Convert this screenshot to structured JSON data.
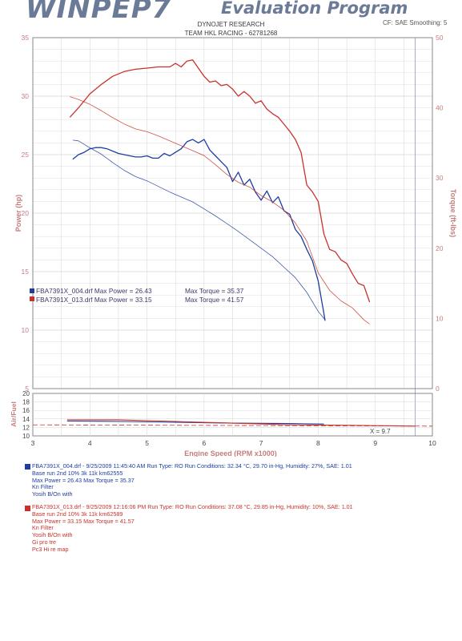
{
  "header": {
    "logo": "WINPEP7",
    "title": "Evaluation Program",
    "right_text": "CF: SAE  Smoothing: 5",
    "company": "DYNOJET RESEARCH",
    "team": "TEAM HKL RACING - 62781268"
  },
  "colors": {
    "run1": "#1f3da0",
    "run2": "#c9322b",
    "grid": "#d4d4d4",
    "label": "#c47d7d"
  },
  "legend": {
    "run1": {
      "file": "FBA7391X_004.drf Max Power = 26.43",
      "torque": "Max Torque = 35.37"
    },
    "run2": {
      "file": "FBA7391X_013.drf Max Power = 33.15",
      "torque": "Max Torque = 41.57"
    }
  },
  "chart_data": [
    {
      "type": "line",
      "xlabel": "Engine Speed (RPM x1000)",
      "ylabel": "Power (hp)",
      "y2label": "Torque (ft-lbs)",
      "xlim": [
        3,
        10
      ],
      "ylim": [
        5,
        35
      ],
      "y2lim": [
        0,
        50
      ],
      "x_ticks": [
        "3",
        "4",
        "5",
        "6",
        "7",
        "8",
        "9",
        "10"
      ],
      "y_ticks": [
        "5",
        "10",
        "15",
        "20",
        "25",
        "30",
        "35"
      ],
      "y2_ticks": [
        "0",
        "10",
        "20",
        "30",
        "40",
        "50"
      ],
      "vline_x": 9.7,
      "series": [
        {
          "name": "FBA7391X_004.drf",
          "quantity": "power",
          "axis": "left",
          "color": "#1f3da0",
          "weight": "bold",
          "points": [
            [
              3.7,
              24.6
            ],
            [
              3.8,
              25.0
            ],
            [
              3.9,
              25.2
            ],
            [
              4.0,
              25.5
            ],
            [
              4.1,
              25.6
            ],
            [
              4.2,
              25.6
            ],
            [
              4.3,
              25.5
            ],
            [
              4.4,
              25.3
            ],
            [
              4.5,
              25.1
            ],
            [
              4.6,
              25.0
            ],
            [
              4.7,
              24.9
            ],
            [
              4.8,
              24.8
            ],
            [
              4.9,
              24.8
            ],
            [
              5.0,
              24.9
            ],
            [
              5.1,
              24.7
            ],
            [
              5.2,
              24.7
            ],
            [
              5.3,
              25.1
            ],
            [
              5.4,
              24.9
            ],
            [
              5.5,
              25.2
            ],
            [
              5.6,
              25.5
            ],
            [
              5.7,
              26.1
            ],
            [
              5.8,
              26.3
            ],
            [
              5.9,
              26.0
            ],
            [
              6.0,
              26.3
            ],
            [
              6.1,
              25.4
            ],
            [
              6.2,
              24.9
            ],
            [
              6.3,
              24.4
            ],
            [
              6.4,
              23.9
            ],
            [
              6.5,
              22.7
            ],
            [
              6.6,
              23.5
            ],
            [
              6.7,
              22.4
            ],
            [
              6.8,
              22.9
            ],
            [
              6.9,
              21.8
            ],
            [
              7.0,
              21.1
            ],
            [
              7.1,
              21.9
            ],
            [
              7.2,
              20.9
            ],
            [
              7.3,
              21.4
            ],
            [
              7.4,
              20.2
            ],
            [
              7.5,
              19.9
            ],
            [
              7.6,
              18.6
            ],
            [
              7.7,
              18.0
            ],
            [
              7.8,
              16.9
            ],
            [
              7.9,
              15.9
            ],
            [
              8.0,
              14.2
            ],
            [
              8.1,
              11.4
            ],
            [
              8.12,
              10.8
            ]
          ]
        },
        {
          "name": "FBA7391X_004.drf",
          "quantity": "torque",
          "axis": "right",
          "color": "#1f3da0",
          "weight": "thin",
          "points": [
            [
              3.7,
              35.4
            ],
            [
              3.8,
              35.3
            ],
            [
              3.9,
              34.8
            ],
            [
              4.0,
              34.3
            ],
            [
              4.2,
              33.4
            ],
            [
              4.4,
              32.2
            ],
            [
              4.6,
              31.1
            ],
            [
              4.8,
              30.2
            ],
            [
              5.0,
              29.6
            ],
            [
              5.2,
              28.8
            ],
            [
              5.4,
              28.0
            ],
            [
              5.6,
              27.3
            ],
            [
              5.8,
              26.6
            ],
            [
              6.0,
              25.6
            ],
            [
              6.2,
              24.6
            ],
            [
              6.4,
              23.5
            ],
            [
              6.6,
              22.4
            ],
            [
              6.8,
              21.2
            ],
            [
              7.0,
              20.0
            ],
            [
              7.2,
              18.8
            ],
            [
              7.4,
              17.3
            ],
            [
              7.6,
              15.8
            ],
            [
              7.8,
              13.7
            ],
            [
              8.0,
              11.0
            ],
            [
              8.12,
              9.8
            ]
          ]
        },
        {
          "name": "FBA7391X_013.drf",
          "quantity": "power",
          "axis": "left",
          "color": "#c9322b",
          "weight": "bold",
          "points": [
            [
              3.65,
              28.2
            ],
            [
              3.8,
              29.0
            ],
            [
              4.0,
              30.2
            ],
            [
              4.2,
              31.0
            ],
            [
              4.4,
              31.7
            ],
            [
              4.6,
              32.1
            ],
            [
              4.8,
              32.3
            ],
            [
              5.0,
              32.4
            ],
            [
              5.2,
              32.5
            ],
            [
              5.4,
              32.5
            ],
            [
              5.5,
              32.8
            ],
            [
              5.6,
              32.5
            ],
            [
              5.7,
              33.0
            ],
            [
              5.8,
              33.1
            ],
            [
              5.9,
              32.4
            ],
            [
              6.0,
              31.7
            ],
            [
              6.1,
              31.2
            ],
            [
              6.2,
              31.3
            ],
            [
              6.3,
              30.9
            ],
            [
              6.4,
              31.0
            ],
            [
              6.5,
              30.6
            ],
            [
              6.6,
              30.0
            ],
            [
              6.7,
              30.4
            ],
            [
              6.8,
              30.0
            ],
            [
              6.9,
              29.4
            ],
            [
              7.0,
              29.6
            ],
            [
              7.1,
              28.9
            ],
            [
              7.2,
              28.5
            ],
            [
              7.3,
              28.2
            ],
            [
              7.4,
              27.6
            ],
            [
              7.5,
              27.0
            ],
            [
              7.6,
              26.3
            ],
            [
              7.7,
              25.2
            ],
            [
              7.8,
              22.4
            ],
            [
              7.9,
              21.8
            ],
            [
              8.0,
              21.0
            ],
            [
              8.1,
              18.2
            ],
            [
              8.2,
              16.9
            ],
            [
              8.3,
              16.7
            ],
            [
              8.4,
              16.0
            ],
            [
              8.5,
              15.7
            ],
            [
              8.6,
              14.8
            ],
            [
              8.7,
              14.0
            ],
            [
              8.8,
              13.8
            ],
            [
              8.9,
              12.4
            ]
          ]
        },
        {
          "name": "FBA7391X_013.drf",
          "quantity": "torque",
          "axis": "right",
          "color": "#c9322b",
          "weight": "thin",
          "points": [
            [
              3.65,
              41.6
            ],
            [
              3.8,
              41.2
            ],
            [
              4.0,
              40.5
            ],
            [
              4.2,
              39.6
            ],
            [
              4.4,
              38.6
            ],
            [
              4.6,
              37.7
            ],
            [
              4.8,
              37.0
            ],
            [
              5.0,
              36.6
            ],
            [
              5.2,
              36.0
            ],
            [
              5.4,
              35.3
            ],
            [
              5.6,
              34.6
            ],
            [
              5.8,
              33.9
            ],
            [
              6.0,
              33.2
            ],
            [
              6.2,
              31.9
            ],
            [
              6.4,
              30.5
            ],
            [
              6.6,
              29.4
            ],
            [
              6.8,
              28.7
            ],
            [
              7.0,
              27.5
            ],
            [
              7.2,
              26.6
            ],
            [
              7.4,
              25.4
            ],
            [
              7.6,
              23.6
            ],
            [
              7.8,
              21.0
            ],
            [
              8.0,
              16.5
            ],
            [
              8.2,
              14.0
            ],
            [
              8.4,
              12.5
            ],
            [
              8.6,
              11.5
            ],
            [
              8.8,
              9.8
            ],
            [
              8.9,
              9.2
            ]
          ]
        }
      ]
    },
    {
      "type": "line",
      "ylabel": "Air/Fuel",
      "xlim": [
        3,
        10
      ],
      "ylim": [
        10,
        20
      ],
      "y_ticks": [
        "10",
        "12",
        "14",
        "16",
        "18",
        "20"
      ],
      "annotation": "X = 9.7",
      "series": [
        {
          "name": "FBA7391X_004.drf",
          "color": "#1f3da0",
          "points": [
            [
              3.6,
              13.5
            ],
            [
              4.5,
              13.4
            ],
            [
              5.5,
              13.2
            ],
            [
              6.5,
              13.0
            ],
            [
              7.5,
              12.9
            ],
            [
              8.1,
              12.8
            ]
          ]
        },
        {
          "name": "FBA7391X_013.drf",
          "color": "#c9322b",
          "points": [
            [
              3.6,
              13.8
            ],
            [
              4.5,
              13.8
            ],
            [
              5.5,
              13.4
            ],
            [
              6.5,
              13.0
            ],
            [
              7.5,
              12.6
            ],
            [
              8.5,
              12.5
            ],
            [
              9.7,
              12.3
            ]
          ]
        }
      ]
    }
  ],
  "run_info": {
    "run1": {
      "lines": [
        "FBA7391X_004.drf - 9/25/2009 11:45:40 AM  Run Type: RO  Run Conditions: 32.34 °C, 29.70 in-Hg,  Humidity:  27%, SAE: 1.01",
        "Base  run 2nd 10% 3k 11k km62555",
        "Max Power = 26.43  Max Torque = 35.37",
        "Kn Filter",
        "Yosih B/On with"
      ]
    },
    "run2": {
      "lines": [
        "FBA7391X_013.drf - 9/25/2009 12:16:06 PM  Run Type: RO  Run Conditions: 37.08 °C, 29.85 in-Hg,  Humidity:  10%, SAE: 1.01",
        "Base  run 2nd 10% 3k 11k km62589",
        "Max Power = 33.15  Max Torque = 41.57",
        "Kn Filter",
        "Yosih B/On with",
        "Gi pro tre",
        "Pc3 Hi re map"
      ]
    }
  }
}
